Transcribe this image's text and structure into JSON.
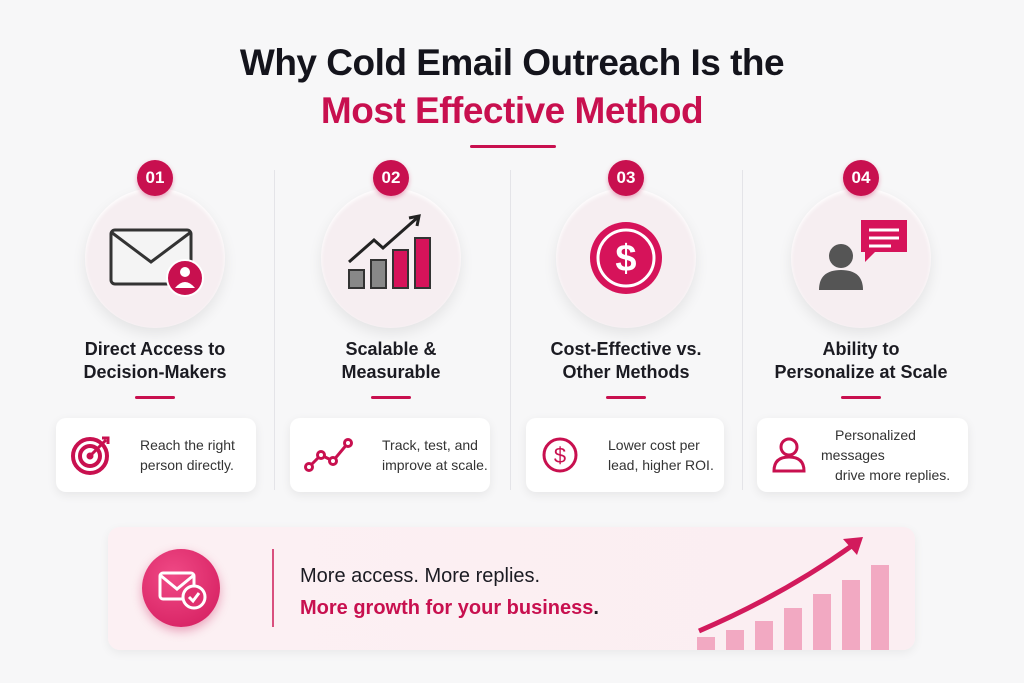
{
  "title": {
    "line1": "Why Cold Email Outreach Is the",
    "line2": "Most Effective Method"
  },
  "colors": {
    "accent": "#c8104f",
    "text": "#1b1b22",
    "background": "#f7f7f8"
  },
  "columns": [
    {
      "number": "01",
      "title_line1": "Direct Access to",
      "title_line2": "Decision-Makers",
      "icon": "envelope-person-icon",
      "card_icon": "target-icon",
      "card_line1": "Reach the right",
      "card_line2": "person directly."
    },
    {
      "number": "02",
      "title_line1": "Scalable &",
      "title_line2": "Measurable",
      "icon": "growth-bar-chart-icon",
      "card_icon": "line-chart-icon",
      "card_line1": "Track, test, and",
      "card_line2": "improve at scale."
    },
    {
      "number": "03",
      "title_line1": "Cost-Effective vs.",
      "title_line2": "Other Methods",
      "icon": "dollar-coin-icon",
      "card_icon": "dollar-circle-icon",
      "card_line1": "Lower cost per",
      "card_line2": "lead, higher ROI."
    },
    {
      "number": "04",
      "title_line1": "Ability to",
      "title_line2": "Personalize at Scale",
      "icon": "person-chat-icon",
      "card_icon": "user-icon",
      "card_line1": "Personalized messages",
      "card_line2": "drive more replies."
    }
  ],
  "banner": {
    "line1": "More access. More replies.",
    "line2": "More growth for your business",
    "line2_end": ".",
    "icon": "envelope-check-icon",
    "graphic": "rising-bars-arrow-icon"
  }
}
